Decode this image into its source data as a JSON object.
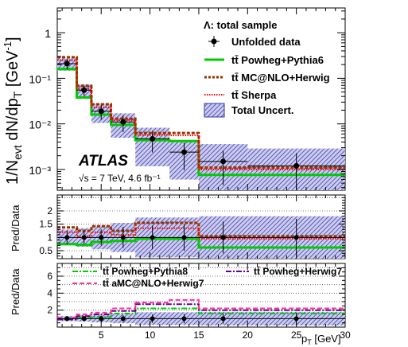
{
  "chart_data": {
    "type": "line",
    "title": "",
    "panels": {
      "main": {
        "ylabel": "1/N_evt dN/dp_T [GeV^-1]",
        "log_y": true,
        "ylim": [
          0.00035,
          3.5
        ],
        "y_ticks": [
          "10⁻³",
          "10⁻²",
          "10⁻¹",
          "1"
        ],
        "y_tick_values": [
          0.001,
          0.01,
          0.1,
          1
        ]
      },
      "ratio_1": {
        "ylabel": "Pred/Data",
        "ylim": [
          0.2,
          2.6
        ],
        "y_ticks": [
          "0.5",
          "1",
          "1.5",
          "2"
        ],
        "y_tick_values": [
          0.5,
          1,
          1.5,
          2
        ],
        "dotted_lines": [
          0.5,
          1,
          1.5,
          2,
          2.5
        ]
      },
      "ratio_2": {
        "ylabel": "Pred/Data",
        "ylim": [
          0,
          7.5
        ],
        "y_ticks": [
          "2",
          "4",
          "6"
        ],
        "y_tick_values": [
          2,
          4,
          6
        ],
        "dotted_lines": [
          1,
          2,
          3,
          4,
          5,
          6,
          7
        ]
      }
    },
    "xlabel": "p_T [GeV]",
    "xlim": [
      0.5,
      30
    ],
    "x_ticks": [
      "5",
      "10",
      "15",
      "20",
      "25",
      "30"
    ],
    "x_tick_values": [
      5,
      10,
      15,
      20,
      25,
      30
    ],
    "bins": [
      0.5,
      2.5,
      4.0,
      6.0,
      8.5,
      12.0,
      15.0,
      20.0,
      30.0
    ],
    "data": {
      "name": "Unfolded data",
      "x": [
        1.5,
        3.25,
        5.0,
        7.25,
        10.25,
        13.5,
        17.5,
        25.0
      ],
      "y": [
        0.21,
        0.055,
        0.019,
        0.011,
        0.0047,
        0.0024,
        0.0015,
        0.0012
      ],
      "xerr": [
        1.0,
        0.75,
        1.0,
        1.25,
        1.75,
        1.5,
        2.5,
        5.0
      ],
      "yerr_rel": [
        0.25,
        0.25,
        0.35,
        0.4,
        0.5,
        0.6,
        0.7,
        0.9
      ]
    },
    "series_main": [
      {
        "name": "tt̄ Powheg+Pythia6",
        "style": "solid",
        "color": "#00cc00",
        "values": [
          0.16,
          0.038,
          0.016,
          0.0095,
          0.0044,
          0.0042,
          0.00076,
          0.00076
        ]
      },
      {
        "name": "tt̄ MC@NLO+Herwig",
        "style": "dashed",
        "color": "#993300",
        "values": [
          0.29,
          0.068,
          0.027,
          0.013,
          0.0063,
          0.0063,
          0.0011,
          0.0011
        ]
      },
      {
        "name": "tt̄ Sherpa",
        "style": "dotted",
        "color": "#ff0000",
        "values": [
          0.25,
          0.058,
          0.023,
          0.012,
          0.0057,
          0.0056,
          0.001,
          0.001
        ]
      }
    ],
    "uncert_band": {
      "name": "Total Uncert.",
      "color": "#3333aa",
      "rel": [
        0.3,
        0.35,
        0.45,
        0.55,
        0.75,
        0.75,
        1.4,
        1.4
      ]
    },
    "ratio_1": {
      "data_rel_err": [
        0.25,
        0.25,
        0.3,
        0.4,
        0.45,
        0.5,
        0.6,
        0.7
      ],
      "band_rel": [
        0.3,
        0.35,
        0.45,
        0.55,
        0.75,
        0.75,
        0.8,
        0.8
      ],
      "series": [
        {
          "name": "tt̄ Powheg+Pythia6",
          "values": [
            0.75,
            0.72,
            0.83,
            0.87,
            0.95,
            0.95,
            0.62,
            0.62
          ]
        },
        {
          "name": "tt̄ MC@NLO+Herwig",
          "values": [
            1.38,
            1.25,
            1.42,
            1.25,
            1.55,
            1.55,
            1.05,
            1.05
          ]
        },
        {
          "name": "tt̄ Sherpa",
          "values": [
            1.2,
            1.05,
            1.2,
            1.1,
            1.35,
            1.35,
            0.95,
            0.95
          ]
        }
      ]
    },
    "ratio_2": {
      "data_rel_err": [
        0.3,
        0.3,
        0.35,
        0.4,
        0.5,
        0.55,
        0.6,
        0.7
      ],
      "band_rel": [
        0.3,
        0.35,
        0.45,
        0.55,
        0.75,
        0.75,
        0.8,
        0.8
      ],
      "series": [
        {
          "name": "tt̄ Powheg+Pythia8",
          "style": "dashdot",
          "color": "#00cc00",
          "values": [
            1.0,
            1.1,
            1.2,
            1.6,
            2.2,
            2.2,
            1.6,
            1.6
          ]
        },
        {
          "name": "tt̄ Powheg+Herwig7",
          "style": "dashdot",
          "color": "#660099",
          "values": [
            0.9,
            1.3,
            1.5,
            1.9,
            2.7,
            2.7,
            2.0,
            2.0
          ]
        },
        {
          "name": "tt̄ aMC@NLO+Herwig7",
          "style": "dashed",
          "color": "#ff3399",
          "values": [
            1.1,
            1.5,
            1.7,
            2.2,
            2.9,
            3.2,
            2.2,
            2.2
          ]
        }
      ]
    }
  },
  "annotations": {
    "sample_label": "Λ: total sample",
    "atlas_label": "ATLAS",
    "energy_label": "√s = 7 TeV, 4.6 fb⁻¹"
  },
  "legend_main": {
    "data": "Unfolded data",
    "pythia6": "tt̄ Powheg+Pythia6",
    "mcnlo": "tt̄ MC@NLO+Herwig",
    "sherpa": "tt̄ Sherpa",
    "uncert": "Total Uncert."
  },
  "legend_ratio2": {
    "pythia8": "tt̄ Powheg+Pythia8",
    "herwig7": "tt̄ Powheg+Herwig7",
    "amcnlo": "tt̄ aMC@NLO+Herwig7"
  },
  "axis_labels": {
    "main_y_prefix": "1/N",
    "main_y_sub": "evt",
    "main_y_mid": " dN/dp",
    "main_y_sub2": "T",
    "main_y_unit": " [GeV",
    "main_y_sup": "-1",
    "main_y_close": "]",
    "ratio_y": "Pred/Data",
    "x_main": "p",
    "x_sub": "T",
    "x_unit": " [GeV]"
  }
}
